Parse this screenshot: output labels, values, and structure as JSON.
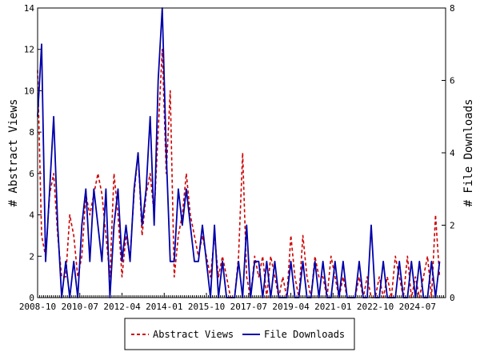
{
  "chart_data": {
    "type": "line",
    "ylabel": "# Abstract Views",
    "y2label": "# File Downloads",
    "ylim": [
      0,
      14
    ],
    "y2lim": [
      0,
      8
    ],
    "yticks": [
      "0",
      "2",
      "4",
      "6",
      "8",
      "10",
      "12",
      "14"
    ],
    "y2ticks": [
      "0",
      "2",
      "4",
      "6",
      "8"
    ],
    "xlim": [
      "2008-10",
      "2025-09"
    ],
    "xticks": [
      "2008-10",
      "2010-07",
      "2012-04",
      "2014-01",
      "2015-10",
      "2017-07",
      "2019-04",
      "2021-01",
      "2022-10",
      "2024-07"
    ],
    "legend_position": "bottom",
    "colors": {
      "views": "#cc0000",
      "downloads": "#0000aa"
    },
    "series": [
      {
        "name": "Abstract Views",
        "axis": "left",
        "style": "dashed",
        "x": [
          "2008-10",
          "2008-12",
          "2009-02",
          "2009-04",
          "2009-06",
          "2009-08",
          "2009-10",
          "2009-12",
          "2010-02",
          "2010-04",
          "2010-06",
          "2010-08",
          "2010-10",
          "2010-12",
          "2011-02",
          "2011-04",
          "2011-06",
          "2011-08",
          "2011-10",
          "2011-12",
          "2012-02",
          "2012-04",
          "2012-06",
          "2012-08",
          "2012-10",
          "2012-12",
          "2013-02",
          "2013-04",
          "2013-06",
          "2013-08",
          "2013-10",
          "2013-12",
          "2014-02",
          "2014-04",
          "2014-06",
          "2014-08",
          "2014-10",
          "2014-12",
          "2015-02",
          "2015-04",
          "2015-06",
          "2015-08",
          "2015-10",
          "2015-12",
          "2016-02",
          "2016-04",
          "2016-06",
          "2016-08",
          "2016-10",
          "2016-12",
          "2017-02",
          "2017-04",
          "2017-06",
          "2017-08",
          "2017-10",
          "2017-12",
          "2018-02",
          "2018-04",
          "2018-06",
          "2018-08",
          "2018-10",
          "2018-12",
          "2019-02",
          "2019-04",
          "2019-06",
          "2019-08",
          "2019-10",
          "2019-12",
          "2020-02",
          "2020-04",
          "2020-06",
          "2020-08",
          "2020-10",
          "2020-12",
          "2021-02",
          "2021-04",
          "2021-06",
          "2021-08",
          "2021-10",
          "2021-12",
          "2022-02",
          "2022-04",
          "2022-06",
          "2022-08",
          "2022-10",
          "2022-12",
          "2023-02",
          "2023-04",
          "2023-06",
          "2023-08",
          "2023-10",
          "2023-12",
          "2024-02",
          "2024-04",
          "2024-06",
          "2024-08",
          "2024-10",
          "2024-12",
          "2025-02",
          "2025-04",
          "2025-06"
        ],
        "values": [
          11,
          3,
          2,
          5,
          6,
          3,
          1,
          1,
          4,
          3,
          1,
          2,
          5,
          4,
          5,
          6,
          5,
          3,
          1,
          6,
          4,
          1,
          3,
          2,
          5,
          7,
          3,
          5,
          6,
          4,
          8,
          12,
          6,
          10,
          1,
          3,
          4,
          6,
          4,
          3,
          2,
          3,
          2,
          1,
          3,
          1,
          2,
          1,
          0,
          0,
          2,
          7,
          1,
          0,
          2,
          1,
          2,
          0,
          2,
          1,
          0,
          1,
          0,
          3,
          1,
          0,
          3,
          1,
          0,
          2,
          1,
          1,
          0,
          2,
          1,
          0,
          1,
          0,
          0,
          0,
          1,
          0,
          1,
          0,
          0,
          1,
          0,
          1,
          0,
          2,
          1,
          0,
          2,
          0,
          1,
          0,
          1,
          2,
          0,
          4,
          1
        ]
      },
      {
        "name": "File Downloads",
        "axis": "right",
        "style": "solid",
        "x": [
          "2008-10",
          "2008-12",
          "2009-02",
          "2009-04",
          "2009-06",
          "2009-08",
          "2009-10",
          "2009-12",
          "2010-02",
          "2010-04",
          "2010-06",
          "2010-08",
          "2010-10",
          "2010-12",
          "2011-02",
          "2011-04",
          "2011-06",
          "2011-08",
          "2011-10",
          "2011-12",
          "2012-02",
          "2012-04",
          "2012-06",
          "2012-08",
          "2012-10",
          "2012-12",
          "2013-02",
          "2013-04",
          "2013-06",
          "2013-08",
          "2013-10",
          "2013-12",
          "2014-02",
          "2014-04",
          "2014-06",
          "2014-08",
          "2014-10",
          "2014-12",
          "2015-02",
          "2015-04",
          "2015-06",
          "2015-08",
          "2015-10",
          "2015-12",
          "2016-02",
          "2016-04",
          "2016-06",
          "2016-08",
          "2016-10",
          "2016-12",
          "2017-02",
          "2017-04",
          "2017-06",
          "2017-08",
          "2017-10",
          "2017-12",
          "2018-02",
          "2018-04",
          "2018-06",
          "2018-08",
          "2018-10",
          "2018-12",
          "2019-02",
          "2019-04",
          "2019-06",
          "2019-08",
          "2019-10",
          "2019-12",
          "2020-02",
          "2020-04",
          "2020-06",
          "2020-08",
          "2020-10",
          "2020-12",
          "2021-02",
          "2021-04",
          "2021-06",
          "2021-08",
          "2021-10",
          "2021-12",
          "2022-02",
          "2022-04",
          "2022-06",
          "2022-08",
          "2022-10",
          "2022-12",
          "2023-02",
          "2023-04",
          "2023-06",
          "2023-08",
          "2023-10",
          "2023-12",
          "2024-02",
          "2024-04",
          "2024-06",
          "2024-08",
          "2024-10",
          "2024-12",
          "2025-02",
          "2025-04",
          "2025-06"
        ],
        "values": [
          5,
          7,
          1,
          3,
          5,
          2,
          0,
          1,
          0,
          1,
          0,
          2,
          3,
          1,
          3,
          2,
          1,
          3,
          0,
          2,
          3,
          1,
          2,
          1,
          3,
          4,
          2,
          3,
          5,
          2,
          6,
          8,
          4,
          1,
          1,
          3,
          2,
          3,
          2,
          1,
          1,
          2,
          1,
          0,
          2,
          0,
          1,
          0,
          0,
          0,
          1,
          0,
          2,
          0,
          1,
          1,
          0,
          1,
          0,
          1,
          0,
          0,
          0,
          1,
          0,
          0,
          1,
          0,
          0,
          1,
          0,
          1,
          0,
          0,
          1,
          0,
          1,
          0,
          0,
          0,
          1,
          0,
          0,
          2,
          0,
          0,
          1,
          0,
          0,
          0,
          1,
          0,
          0,
          1,
          0,
          1,
          0,
          0,
          1,
          0,
          1
        ]
      }
    ]
  }
}
